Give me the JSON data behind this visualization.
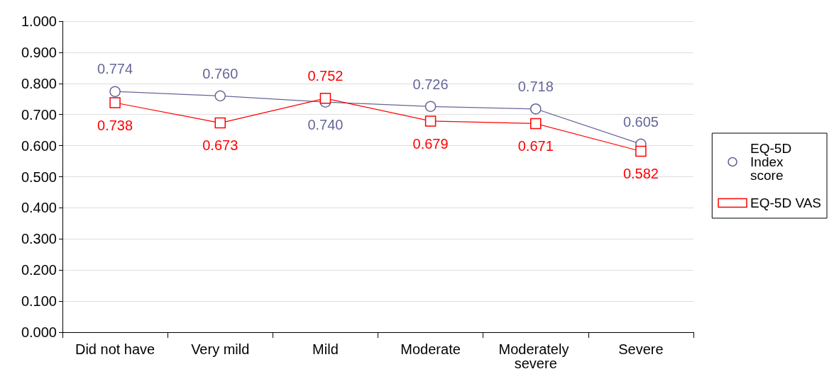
{
  "chart_data": {
    "type": "line",
    "categories": [
      "Did not have",
      "Very mild",
      "Mild",
      "Moderate",
      "Moderately severe",
      "Severe"
    ],
    "series": [
      {
        "name": "EQ-5D Index score",
        "color": "#666699",
        "marker": "circle",
        "values": [
          0.774,
          0.76,
          0.74,
          0.726,
          0.718,
          0.605
        ],
        "value_labels": [
          "0.774",
          "0.760",
          "0.740",
          "0.726",
          "0.718",
          "0.605"
        ]
      },
      {
        "name": "EQ-5D VAS",
        "color": "#ff0000",
        "marker": "square",
        "values": [
          0.738,
          0.673,
          0.752,
          0.679,
          0.671,
          0.582
        ],
        "value_labels": [
          "0.738",
          "0.673",
          "0.752",
          "0.679",
          "0.671",
          "0.582"
        ]
      }
    ],
    "ylim": [
      0,
      1
    ],
    "yticks": [
      {
        "value": 0,
        "label": "0.000"
      },
      {
        "value": 0.1,
        "label": "0.100"
      },
      {
        "value": 0.2,
        "label": "0.200"
      },
      {
        "value": 0.3,
        "label": "0.300"
      },
      {
        "value": 0.4,
        "label": "0.400"
      },
      {
        "value": 0.5,
        "label": "0.500"
      },
      {
        "value": 0.6,
        "label": "0.600"
      },
      {
        "value": 0.7,
        "label": "0.700"
      },
      {
        "value": 0.8,
        "label": "0.800"
      },
      {
        "value": 0.9,
        "label": "0.900"
      },
      {
        "value": 1,
        "label": "1.000"
      }
    ],
    "grid": "y",
    "legend": "right",
    "line_style": "solid"
  }
}
